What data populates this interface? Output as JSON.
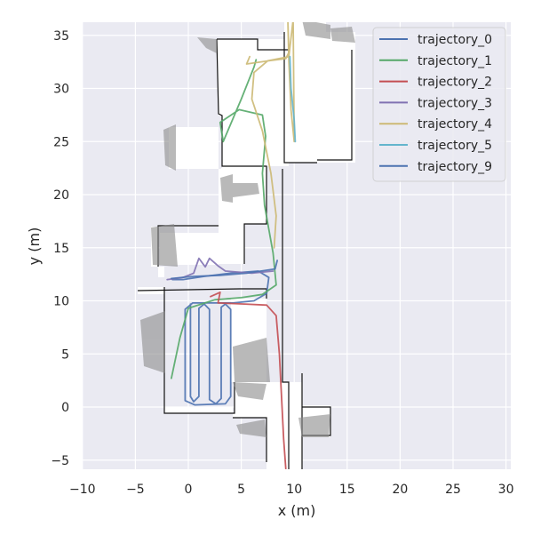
{
  "chart_data": {
    "type": "line",
    "title": "",
    "xlabel": "x (m)",
    "ylabel": "y (m)",
    "xlim": [
      -10.5,
      30.5
    ],
    "ylim": [
      -6,
      36.5
    ],
    "xticks": [
      -10,
      -5,
      0,
      5,
      10,
      15,
      20,
      25,
      30
    ],
    "yticks": [
      -5,
      0,
      5,
      10,
      15,
      20,
      25,
      30,
      35
    ],
    "grid": true,
    "legend_position": "top-right",
    "background_color": "#eaeaf2",
    "map_wall_color": "#111111",
    "map_scan_color": "#8c8c8c",
    "series": [
      {
        "name": "trajectory_0",
        "color": "#4c72b0",
        "points": [
          [
            0.2,
            9.7
          ],
          [
            0.2,
            1.0
          ],
          [
            0.5,
            0.5
          ],
          [
            1.0,
            1.0
          ],
          [
            1.0,
            9.3
          ],
          [
            1.5,
            9.7
          ],
          [
            2.0,
            9.2
          ],
          [
            2.0,
            0.7
          ],
          [
            2.6,
            0.3
          ],
          [
            3.1,
            0.8
          ],
          [
            3.1,
            9.4
          ],
          [
            3.5,
            9.7
          ],
          [
            4.0,
            9.2
          ],
          [
            4.0,
            1.0
          ],
          [
            3.5,
            0.3
          ],
          [
            0.6,
            0.2
          ],
          [
            -0.3,
            0.6
          ],
          [
            -0.3,
            9.2
          ],
          [
            0.4,
            9.8
          ],
          [
            4.2,
            9.8
          ],
          [
            6.2,
            10.0
          ],
          [
            7.4,
            10.7
          ],
          [
            7.6,
            12.2
          ],
          [
            6.6,
            12.8
          ],
          [
            4.0,
            12.6
          ],
          [
            1.5,
            12.3
          ],
          [
            -0.5,
            12.0
          ],
          [
            -1.5,
            12.0
          ]
        ]
      },
      {
        "name": "trajectory_1",
        "color": "#55a868",
        "points": [
          [
            -1.6,
            2.7
          ],
          [
            -0.8,
            6.5
          ],
          [
            0.0,
            9.3
          ],
          [
            2.5,
            10.1
          ],
          [
            5.0,
            10.3
          ],
          [
            7.0,
            10.6
          ],
          [
            8.3,
            11.5
          ],
          [
            8.0,
            14.5
          ],
          [
            7.2,
            19.0
          ],
          [
            7.0,
            22.0
          ],
          [
            7.3,
            25.5
          ],
          [
            7.0,
            27.5
          ],
          [
            4.8,
            28.0
          ],
          [
            3.0,
            26.8
          ],
          [
            3.3,
            25.0
          ],
          [
            5.0,
            29.0
          ],
          [
            6.2,
            32.0
          ],
          [
            6.4,
            32.7
          ]
        ]
      },
      {
        "name": "trajectory_2",
        "color": "#c44e52",
        "points": [
          [
            2.1,
            10.4
          ],
          [
            3.0,
            10.8
          ],
          [
            2.8,
            9.8
          ],
          [
            5.3,
            9.7
          ],
          [
            7.4,
            9.6
          ],
          [
            8.3,
            8.6
          ],
          [
            8.6,
            5.0
          ],
          [
            8.8,
            1.0
          ],
          [
            9.0,
            -3.0
          ],
          [
            9.2,
            -5.8
          ]
        ]
      },
      {
        "name": "trajectory_3",
        "color": "#8172b2",
        "points": [
          [
            -2.0,
            12.0
          ],
          [
            -0.5,
            12.2
          ],
          [
            0.5,
            12.6
          ],
          [
            1.0,
            14.0
          ],
          [
            1.6,
            13.2
          ],
          [
            2.0,
            14.0
          ],
          [
            2.8,
            13.3
          ],
          [
            3.5,
            12.8
          ],
          [
            6.0,
            12.6
          ],
          [
            8.0,
            12.8
          ]
        ]
      },
      {
        "name": "trajectory_4",
        "color": "#ccb974",
        "points": [
          [
            5.8,
            33.0
          ],
          [
            5.5,
            32.3
          ],
          [
            7.6,
            32.6
          ],
          [
            9.2,
            32.8
          ],
          [
            9.5,
            33.4
          ],
          [
            9.4,
            36.5
          ],
          [
            9.5,
            32.5
          ],
          [
            9.7,
            28.0
          ],
          [
            10.0,
            25.0
          ],
          [
            9.9,
            36.5
          ],
          [
            9.5,
            33.0
          ],
          [
            7.5,
            32.6
          ],
          [
            6.2,
            31.5
          ],
          [
            6.0,
            29.0
          ],
          [
            7.0,
            26.0
          ],
          [
            7.8,
            22.0
          ],
          [
            8.3,
            18.0
          ],
          [
            8.1,
            15.0
          ]
        ]
      },
      {
        "name": "trajectory_5",
        "color": "#64b5cd",
        "points": [
          [
            9.6,
            33.0
          ],
          [
            9.7,
            30.0
          ],
          [
            10.0,
            27.0
          ],
          [
            10.1,
            25.0
          ]
        ]
      },
      {
        "name": "trajectory_9",
        "color": "#4c72b0",
        "points": [
          [
            -1.6,
            12.1
          ],
          [
            0.5,
            12.3
          ],
          [
            3.0,
            12.4
          ],
          [
            5.5,
            12.6
          ],
          [
            8.2,
            13.0
          ],
          [
            8.4,
            13.8
          ]
        ]
      }
    ]
  }
}
